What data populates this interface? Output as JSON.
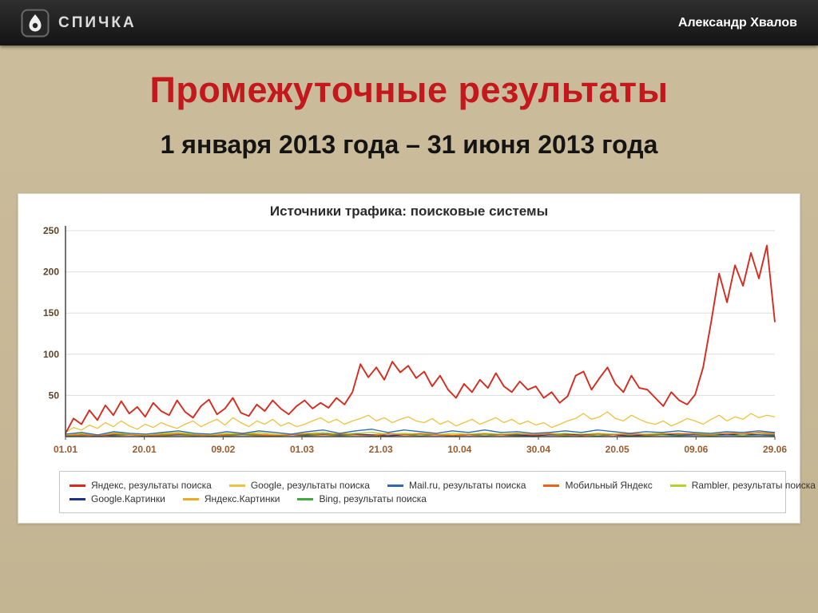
{
  "theme": {
    "header_bg": "#1d1d1d",
    "slide_bg": "#c9ba97",
    "accent_red": "#c3191d",
    "panel_bg": "#ffffff"
  },
  "header": {
    "logo_text": "СПИЧКА",
    "author": "Александр Хвалов"
  },
  "slide": {
    "title": "Промежуточные результаты",
    "subtitle": "1 января 2013 года – 31 июня 2013 года"
  },
  "chart_data": {
    "type": "line",
    "title": "Источники трафика: поисковые системы",
    "xlabel": "",
    "ylabel": "",
    "ylim": [
      0,
      250
    ],
    "y_ticks": [
      50,
      100,
      150,
      200,
      250
    ],
    "x_tick_labels": [
      "01.01",
      "20.01",
      "09.02",
      "01.03",
      "21.03",
      "10.04",
      "30.04",
      "20.05",
      "09.06",
      "29.06"
    ],
    "grid": true,
    "legend_position": "bottom",
    "legend_rows": [
      5,
      3
    ],
    "axis_colors": {
      "y_labels": "#5d4426",
      "x_labels": "#9a5b2e",
      "axis_line": "#444444",
      "gridline": "#dddddd"
    },
    "series": [
      {
        "name": "Яндекс, результаты поиска",
        "color": "#d52b1e",
        "values": [
          4,
          22,
          15,
          32,
          20,
          38,
          26,
          43,
          28,
          36,
          24,
          41,
          31,
          26,
          44,
          30,
          23,
          37,
          45,
          27,
          34,
          47,
          29,
          25,
          39,
          31,
          44,
          34,
          27,
          37,
          44,
          34,
          41,
          35,
          47,
          39,
          54,
          88,
          72,
          84,
          69,
          91,
          78,
          86,
          71,
          79,
          61,
          74,
          57,
          47,
          64,
          54,
          69,
          59,
          77,
          61,
          54,
          67,
          57,
          61,
          47,
          54,
          41,
          49,
          74,
          79,
          57,
          71,
          84,
          64,
          54,
          74,
          59,
          57,
          47,
          37,
          54,
          44,
          39,
          51,
          84,
          139,
          198,
          163,
          208,
          183,
          223,
          192,
          232,
          139
        ]
      },
      {
        "name": "Google, результаты поиска",
        "color": "#edc240",
        "values": [
          5,
          11,
          8,
          14,
          10,
          17,
          12,
          19,
          13,
          9,
          15,
          11,
          17,
          13,
          10,
          15,
          19,
          12,
          17,
          21,
          14,
          23,
          17,
          12,
          19,
          15,
          21,
          13,
          17,
          12,
          15,
          19,
          23,
          17,
          21,
          15,
          19,
          22,
          26,
          19,
          23,
          17,
          21,
          24,
          19,
          17,
          22,
          15,
          19,
          13,
          17,
          21,
          15,
          19,
          23,
          17,
          21,
          15,
          19,
          14,
          17,
          11,
          15,
          19,
          22,
          28,
          21,
          24,
          30,
          22,
          19,
          26,
          21,
          17,
          15,
          19,
          13,
          17,
          22,
          19,
          15,
          21,
          26,
          19,
          24,
          21,
          28,
          23,
          26,
          24
        ]
      },
      {
        "name": "Mail.ru, результаты поиска",
        "color": "#2e6ab1",
        "values": [
          3,
          5,
          2,
          6,
          4,
          3,
          5,
          7,
          4,
          3,
          6,
          4,
          7,
          5,
          3,
          6,
          8,
          4,
          7,
          9,
          5,
          8,
          6,
          4,
          7,
          5,
          8,
          5,
          6,
          4,
          5,
          7,
          5,
          8,
          6,
          4,
          6,
          5,
          7,
          5,
          4,
          6,
          5,
          7,
          5
        ]
      },
      {
        "name": "Мобильный Яндекс",
        "color": "#e8641b",
        "values": [
          1,
          2,
          1,
          3,
          2,
          1,
          2,
          3,
          2,
          1,
          2,
          3,
          2,
          1,
          2,
          3,
          2,
          3,
          2,
          1,
          3,
          2,
          3,
          2,
          1,
          2,
          3,
          2,
          3,
          2,
          3,
          2,
          1,
          3,
          2,
          3,
          2,
          3,
          4,
          3,
          2,
          4,
          3,
          5,
          4
        ]
      },
      {
        "name": "Rambler, результаты поиска",
        "color": "#b4d22d",
        "values": [
          2,
          4,
          2,
          5,
          3,
          2,
          4,
          5,
          3,
          2,
          4,
          3,
          5,
          3,
          2,
          4,
          5,
          3,
          4,
          5,
          3,
          4,
          3,
          2,
          4,
          3,
          4,
          3,
          4,
          2,
          3,
          4,
          3,
          4,
          3,
          2,
          3,
          4,
          3,
          4,
          3,
          4,
          3,
          4,
          3
        ]
      },
      {
        "name": "Google.Картинки",
        "color": "#20318c",
        "values": [
          1,
          2,
          1,
          2,
          3,
          1,
          2,
          2,
          3,
          1,
          2,
          3,
          2,
          1,
          2,
          2,
          3,
          2,
          3,
          2,
          1,
          2,
          3,
          2,
          1,
          2,
          3,
          2,
          2,
          1,
          2,
          3,
          2,
          3,
          2,
          1,
          2,
          3,
          2,
          2,
          3,
          2,
          3,
          2,
          2
        ]
      },
      {
        "name": "Яндекс.Картинки",
        "color": "#f5a623",
        "values": [
          2,
          3,
          2,
          4,
          3,
          2,
          3,
          4,
          3,
          2,
          3,
          4,
          3,
          2,
          3,
          4,
          3,
          4,
          3,
          2,
          4,
          3,
          4,
          3,
          2,
          3,
          4,
          3,
          4,
          3,
          4,
          3,
          2,
          4,
          3,
          4,
          3,
          4,
          3,
          4,
          3,
          4,
          5,
          4,
          3
        ]
      },
      {
        "name": "Bing, результаты поиска",
        "color": "#3faa3f",
        "values": [
          1,
          1,
          2,
          1,
          2,
          1,
          1,
          2,
          1,
          2,
          1,
          2,
          1,
          1,
          2,
          1,
          2,
          1,
          2,
          1,
          1,
          2,
          1,
          2,
          1,
          2,
          1,
          2,
          1,
          1,
          2,
          1,
          2,
          1,
          2,
          1,
          1,
          2,
          1,
          2,
          1,
          2,
          1,
          2,
          1
        ]
      }
    ]
  }
}
